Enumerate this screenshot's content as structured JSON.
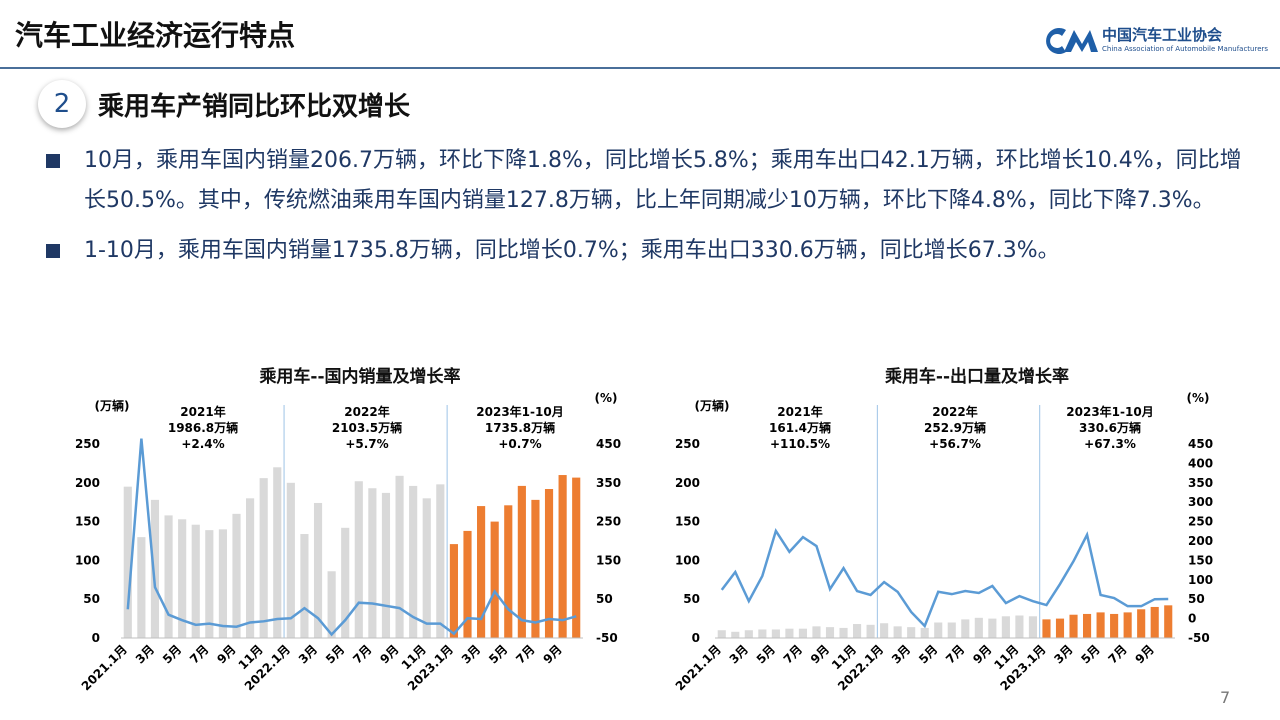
{
  "header": {
    "title": "汽车工业经济运行特点",
    "logo_cn": "中国汽车工业协会",
    "logo_en": "China Association of Automobile Manufacturers"
  },
  "section": {
    "number": "2",
    "title": "乘用车产销同比环比双增长"
  },
  "bullets": [
    "10月，乘用车国内销量206.7万辆，环比下降1.8%，同比增长5.8%；乘用车出口42.1万辆，环比增长10.4%，同比增长50.5%。其中，传统燃油乘用车国内销量127.8万辆，比上年同期减少10万辆，环比下降4.8%，同比下降7.3%。",
    "1-10月，乘用车国内销量1735.8万辆，同比增长0.7%；乘用车出口330.6万辆，同比增长67.3%。"
  ],
  "chart_data": [
    {
      "type": "bar",
      "title": "乘用车--国内销量及增长率",
      "y_label": "(万辆)",
      "y2_label": "(%)",
      "annotations": [
        [
          "2021年",
          "1986.8万辆",
          "+2.4%"
        ],
        [
          "2022年",
          "2103.5万辆",
          "+5.7%"
        ],
        [
          "2023年1-10月",
          "1735.8万辆",
          "+0.7%"
        ]
      ],
      "categories": [
        "2021.1月",
        null,
        "3月",
        null,
        "5月",
        null,
        "7月",
        null,
        "9月",
        null,
        "11月",
        null,
        "2022.1月",
        null,
        "3月",
        null,
        "5月",
        null,
        "7月",
        null,
        "9月",
        null,
        "11月",
        null,
        "2023.1月",
        null,
        "3月",
        null,
        "5月",
        null,
        "7月",
        null,
        "9月",
        null
      ],
      "ylim": [
        0,
        250
      ],
      "yticks": [
        0,
        50,
        100,
        150,
        200,
        250
      ],
      "y2lim": [
        -50,
        450
      ],
      "y2ticks": [
        -50,
        50,
        150,
        250,
        350,
        450
      ],
      "series": [
        {
          "type": "bar",
          "color": "#d9d9d9",
          "values": [
            195,
            130,
            178,
            158,
            153,
            146,
            139,
            140,
            160,
            180,
            206,
            220,
            200,
            134,
            174,
            86,
            142,
            202,
            193,
            187,
            209,
            196,
            180,
            198,
            null,
            null,
            null,
            null,
            null,
            null,
            null,
            null,
            null,
            null
          ]
        },
        {
          "type": "bar",
          "color": "#ed7d31",
          "values": [
            null,
            null,
            null,
            null,
            null,
            null,
            null,
            null,
            null,
            null,
            null,
            null,
            null,
            null,
            null,
            null,
            null,
            null,
            null,
            null,
            null,
            null,
            null,
            null,
            121,
            138,
            170,
            150,
            171,
            196,
            178,
            192,
            210,
            206.7
          ]
        },
        {
          "type": "line",
          "axis": "y2",
          "color": "#5b9bd5",
          "values": [
            24,
            464,
            81,
            10,
            -4,
            -16,
            -13,
            -19,
            -21,
            -10,
            -7,
            -1,
            1,
            27,
            1,
            -41,
            -4,
            41,
            39,
            33,
            27,
            4,
            -13,
            -13,
            -39,
            1,
            -1,
            70,
            24,
            -4,
            -10,
            -1,
            -4,
            5.8
          ]
        }
      ]
    },
    {
      "type": "bar",
      "title": "乘用车--出口量及增长率",
      "y_label": "(万辆)",
      "y2_label": "(%)",
      "annotations": [
        [
          "2021年",
          "161.4万辆",
          "+110.5%"
        ],
        [
          "2022年",
          "252.9万辆",
          "+56.7%"
        ],
        [
          "2023年1-10月",
          "330.6万辆",
          "+67.3%"
        ]
      ],
      "categories": [
        "2021.1月",
        null,
        "3月",
        null,
        "5月",
        null,
        "7月",
        null,
        "9月",
        null,
        "11月",
        null,
        "2022.1月",
        null,
        "3月",
        null,
        "5月",
        null,
        "7月",
        null,
        "9月",
        null,
        "11月",
        null,
        "2023.1月",
        null,
        "3月",
        null,
        "5月",
        null,
        "7月",
        null,
        "9月",
        null
      ],
      "ylim": [
        0,
        250
      ],
      "yticks": [
        0,
        50,
        100,
        150,
        200,
        250
      ],
      "y2lim": [
        -50,
        450
      ],
      "y2ticks": [
        -50,
        0,
        50,
        100,
        150,
        200,
        250,
        300,
        350,
        400,
        450
      ],
      "series": [
        {
          "type": "bar",
          "color": "#d9d9d9",
          "values": [
            10,
            8,
            10,
            11,
            11,
            12,
            12,
            15,
            14,
            13,
            18,
            17,
            19,
            15,
            14,
            13,
            20,
            20,
            24,
            26,
            25,
            28,
            29,
            28,
            null,
            null,
            null,
            null,
            null,
            null,
            null,
            null,
            null,
            null
          ]
        },
        {
          "type": "bar",
          "color": "#ed7d31",
          "values": [
            null,
            null,
            null,
            null,
            null,
            null,
            null,
            null,
            null,
            null,
            null,
            null,
            null,
            null,
            null,
            null,
            null,
            null,
            null,
            null,
            null,
            null,
            null,
            null,
            24,
            25,
            30,
            31,
            33,
            31,
            33,
            37,
            40,
            42.1
          ]
        },
        {
          "type": "line",
          "axis": "y2",
          "color": "#5b9bd5",
          "values": [
            74,
            120,
            45,
            110,
            226,
            172,
            210,
            187,
            76,
            130,
            71,
            61,
            94,
            69,
            17,
            -19,
            69,
            63,
            71,
            66,
            84,
            40,
            58,
            45,
            35,
            89,
            148,
            216,
            61,
            53,
            32,
            32,
            50,
            50.5
          ]
        }
      ]
    }
  ],
  "page_number": "7"
}
